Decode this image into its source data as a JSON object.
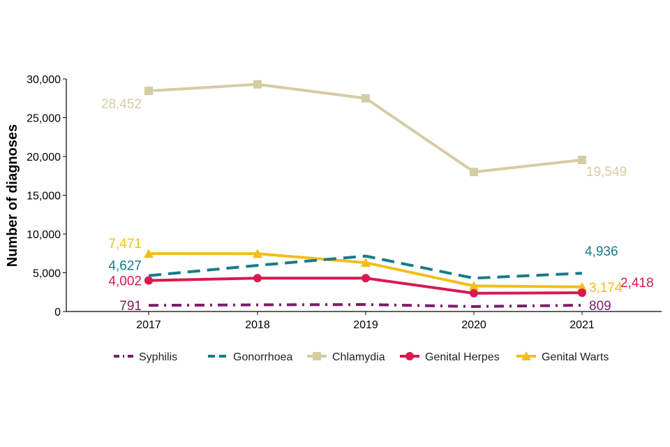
{
  "chart_data": {
    "type": "line",
    "title": "",
    "xlabel": "",
    "ylabel": "Number of diagnoses",
    "ylim": [
      0,
      30000
    ],
    "yticks": [
      0,
      5000,
      10000,
      15000,
      20000,
      25000,
      30000
    ],
    "ytick_labels": [
      "0",
      "5,000",
      "10,000",
      "15,000",
      "20,000",
      "25,000",
      "30,000"
    ],
    "categories": [
      "2017",
      "2018",
      "2019",
      "2020",
      "2021"
    ],
    "grid": false,
    "legend_position": "bottom",
    "series": [
      {
        "key": "syphilis",
        "name": "Syphilis",
        "color": "#7B1D6B",
        "style": "dashdot",
        "marker": "none",
        "values": [
          791,
          860,
          900,
          640,
          809
        ],
        "labels": [
          {
            "index": 0,
            "text": "791",
            "side": "left"
          },
          {
            "index": 4,
            "text": "809",
            "side": "right"
          }
        ]
      },
      {
        "key": "gonorrhoea",
        "name": "Gonorrhoea",
        "color": "#1A7A87",
        "style": "dashed",
        "marker": "none",
        "values": [
          4627,
          5950,
          7150,
          4300,
          4936
        ],
        "labels": [
          {
            "index": 0,
            "text": "4,627",
            "side": "left-up"
          },
          {
            "index": 4,
            "text": "4,936",
            "side": "right-up"
          }
        ]
      },
      {
        "key": "chlamydia",
        "name": "Chlamydia",
        "color": "#D5CCA3",
        "style": "solid",
        "marker": "square",
        "values": [
          28452,
          29300,
          27500,
          18000,
          19549
        ],
        "labels": [
          {
            "index": 0,
            "text": "28,452",
            "side": "left-down"
          },
          {
            "index": 4,
            "text": "19,549",
            "side": "right-down"
          }
        ]
      },
      {
        "key": "herpes",
        "name": "Genital Herpes",
        "color": "#D81A4E",
        "style": "solid",
        "marker": "circle",
        "values": [
          4002,
          4300,
          4300,
          2350,
          2418
        ],
        "labels": [
          {
            "index": 0,
            "text": "4,002",
            "side": "left"
          },
          {
            "index": 4,
            "text": "2,418",
            "side": "far-right"
          }
        ]
      },
      {
        "key": "warts",
        "name": "Genital Warts",
        "color": "#F2BE1A",
        "style": "solid",
        "marker": "triangle",
        "values": [
          7471,
          7450,
          6300,
          3300,
          3174
        ],
        "labels": [
          {
            "index": 0,
            "text": "7,471",
            "side": "left-up"
          },
          {
            "index": 4,
            "text": "3,174",
            "side": "right"
          }
        ]
      }
    ]
  }
}
